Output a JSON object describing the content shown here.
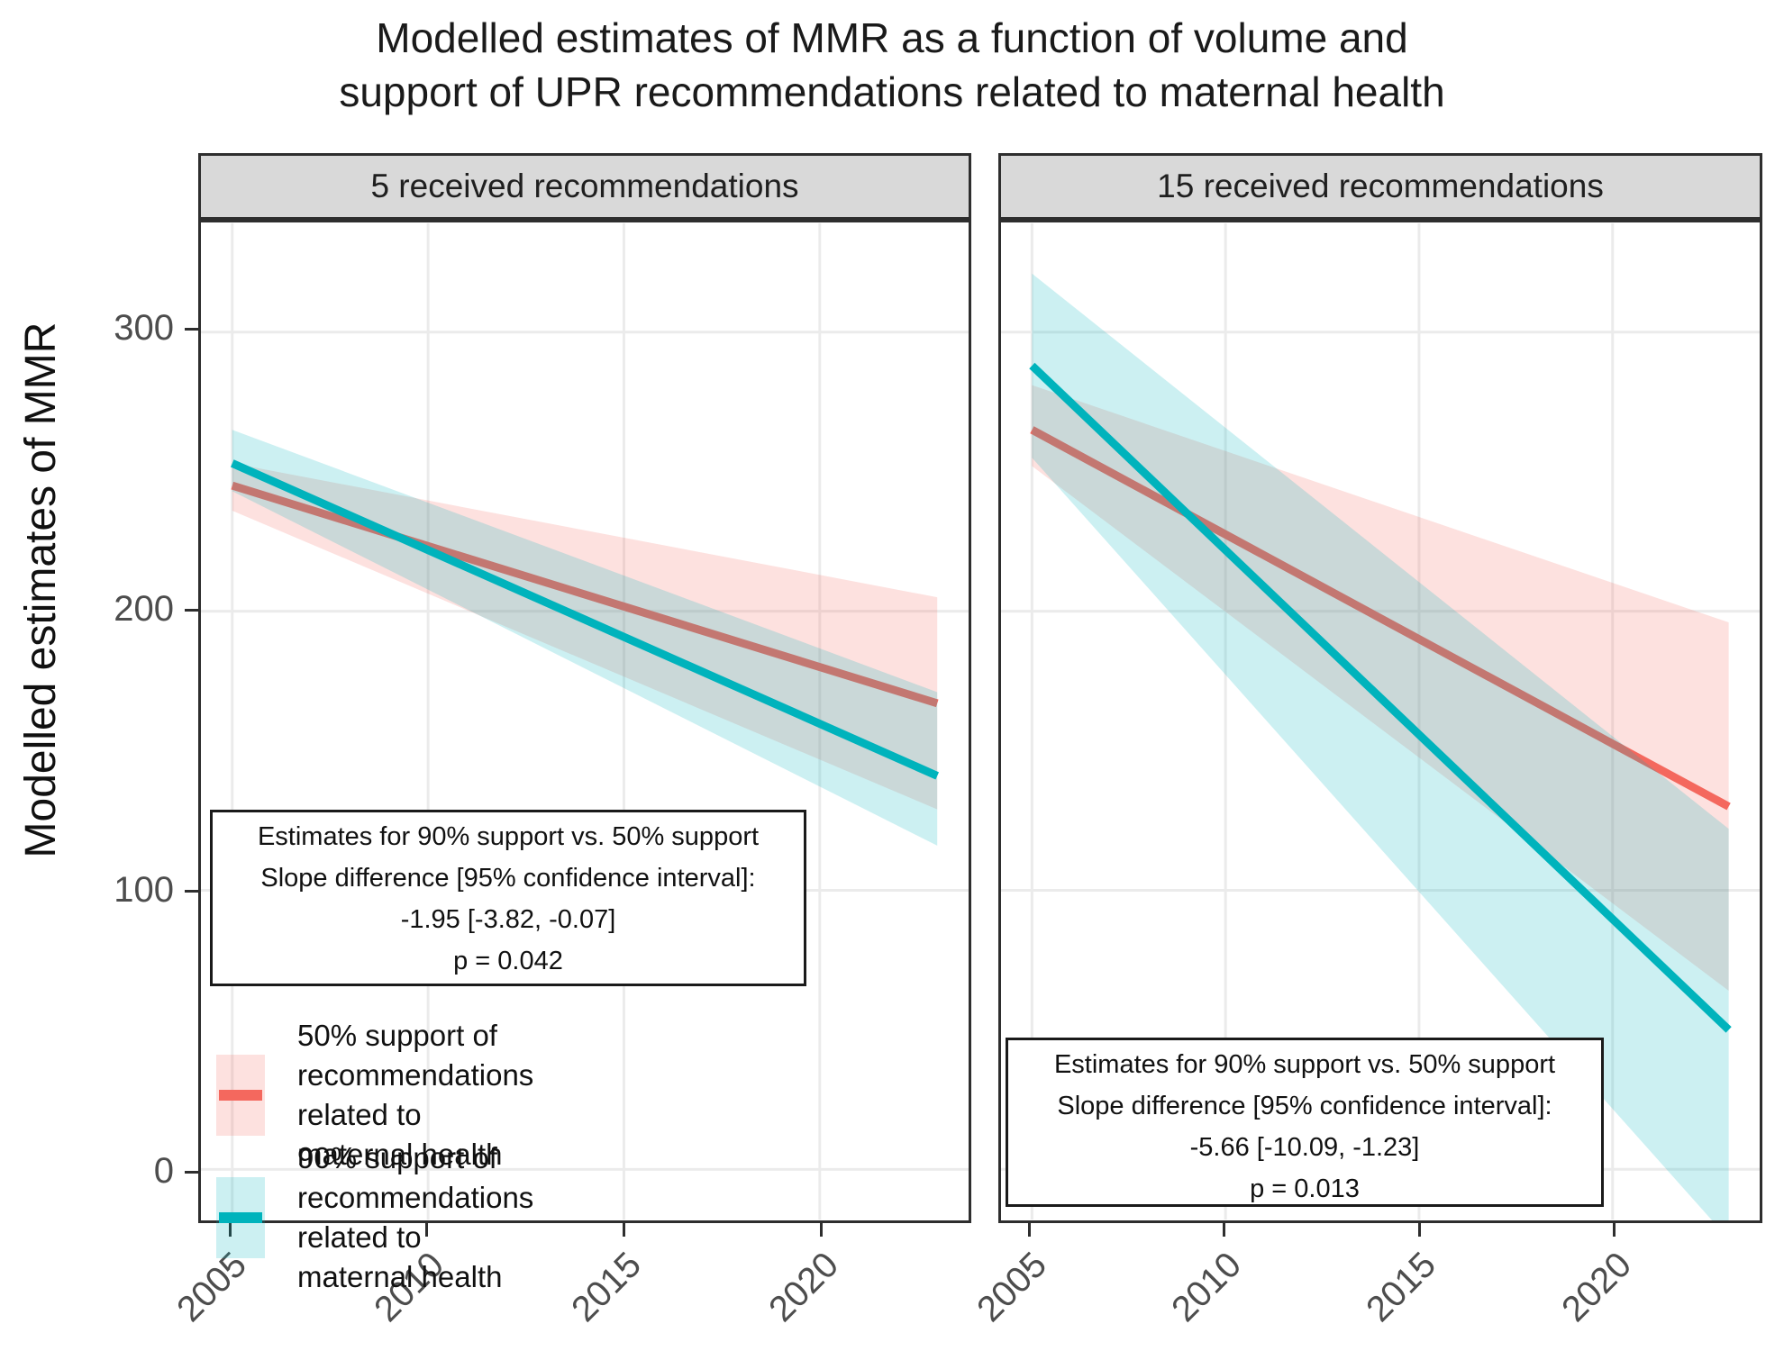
{
  "title": "Modelled estimates of MMR as a function of volume and\nsupport of UPR recommendations related to maternal health",
  "y_axis_title": "Modelled estimates of MMR",
  "colors": {
    "red_line": "#F4685E",
    "teal_line": "#00B3BC",
    "red_ribbon": "rgba(244,104,94,0.2)",
    "teal_ribbon": "rgba(0,179,188,0.2)",
    "strip_background": "#D9D9D9",
    "gridline": "#EBEBEB",
    "axis_text": "#4D4D4D",
    "panel_border": "#2e2e2e"
  },
  "chart_data": {
    "type": "line",
    "title": "Modelled estimates of MMR as a function of volume and support of UPR recommendations related to maternal health",
    "xlabel": "",
    "ylabel": "Modelled estimates of MMR",
    "x_ticks": [
      2005,
      2010,
      2015,
      2020
    ],
    "y_ticks": [
      0,
      100,
      200,
      300
    ],
    "x_range": [
      2004.2,
      2023.8
    ],
    "y_range": [
      -18,
      339
    ],
    "grid": "major-only",
    "legend_position": "inside-left-panel-bottom",
    "panels": [
      {
        "facet_label": "5 received recommendations",
        "annotation": [
          "Estimates for 90% support vs. 50% support",
          "Slope difference [95% confidence interval]:",
          "-1.95 [-3.82, -0.07]",
          "p = 0.042"
        ],
        "series": [
          {
            "name": "50% support of recommendations related to maternal health",
            "x": [
              2005,
              2023
            ],
            "values": [
              245,
              167
            ],
            "ci_upper": [
              253,
              205
            ],
            "ci_lower": [
              236,
              129
            ],
            "line_color": "#F4685E",
            "ribbon_color": "rgba(244,104,94,0.2)"
          },
          {
            "name": "90% support of recommendations related to maternal health",
            "x": [
              2005,
              2023
            ],
            "values": [
              253,
              141
            ],
            "ci_upper": [
              265,
              171
            ],
            "ci_lower": [
              243,
              116
            ],
            "line_color": "#00B3BC",
            "ribbon_color": "rgba(0,179,188,0.2)"
          }
        ]
      },
      {
        "facet_label": "15 received recommendations",
        "annotation": [
          "Estimates for 90% support vs. 50% support",
          "Slope difference [95% confidence interval]:",
          "-5.66 [-10.09, -1.23]",
          "p = 0.013"
        ],
        "series": [
          {
            "name": "50% support of recommendations related to maternal health",
            "x": [
              2005,
              2023
            ],
            "values": [
              265,
              130
            ],
            "ci_upper": [
              281,
              196
            ],
            "ci_lower": [
              252,
              64
            ],
            "line_color": "#F4685E",
            "ribbon_color": "rgba(244,104,94,0.2)"
          },
          {
            "name": "90% support of recommendations related to maternal health",
            "x": [
              2005,
              2023
            ],
            "values": [
              288,
              50
            ],
            "ci_upper": [
              321,
              122
            ],
            "ci_lower": [
              255,
              -25
            ],
            "line_color": "#00B3BC",
            "ribbon_color": "rgba(0,179,188,0.2)"
          }
        ]
      }
    ],
    "legend": [
      {
        "label": "50% support of recommendations\nrelated to maternal health",
        "line_color": "#F4685E",
        "ribbon_color": "rgba(244,104,94,0.2)"
      },
      {
        "label": "90% support of recommendations\nrelated to maternal health",
        "line_color": "#00B3BC",
        "ribbon_color": "rgba(0,179,188,0.2)"
      }
    ]
  }
}
